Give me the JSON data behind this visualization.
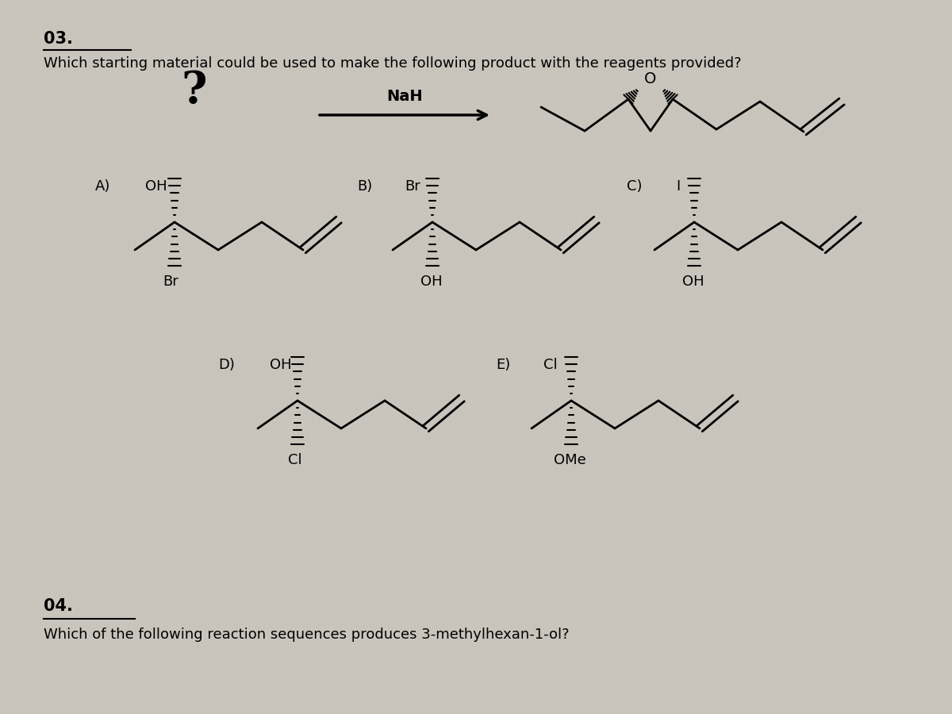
{
  "bg_color": "#c8c4bc",
  "text_color": "#000000",
  "title_03": "03.",
  "question_03": "Which starting material could be used to make the following product with the reagents provided?",
  "reagent": "NaH",
  "title_04": "04.",
  "question_04": "Which of the following reaction sequences produces 3-methylhexan-1-ol?"
}
